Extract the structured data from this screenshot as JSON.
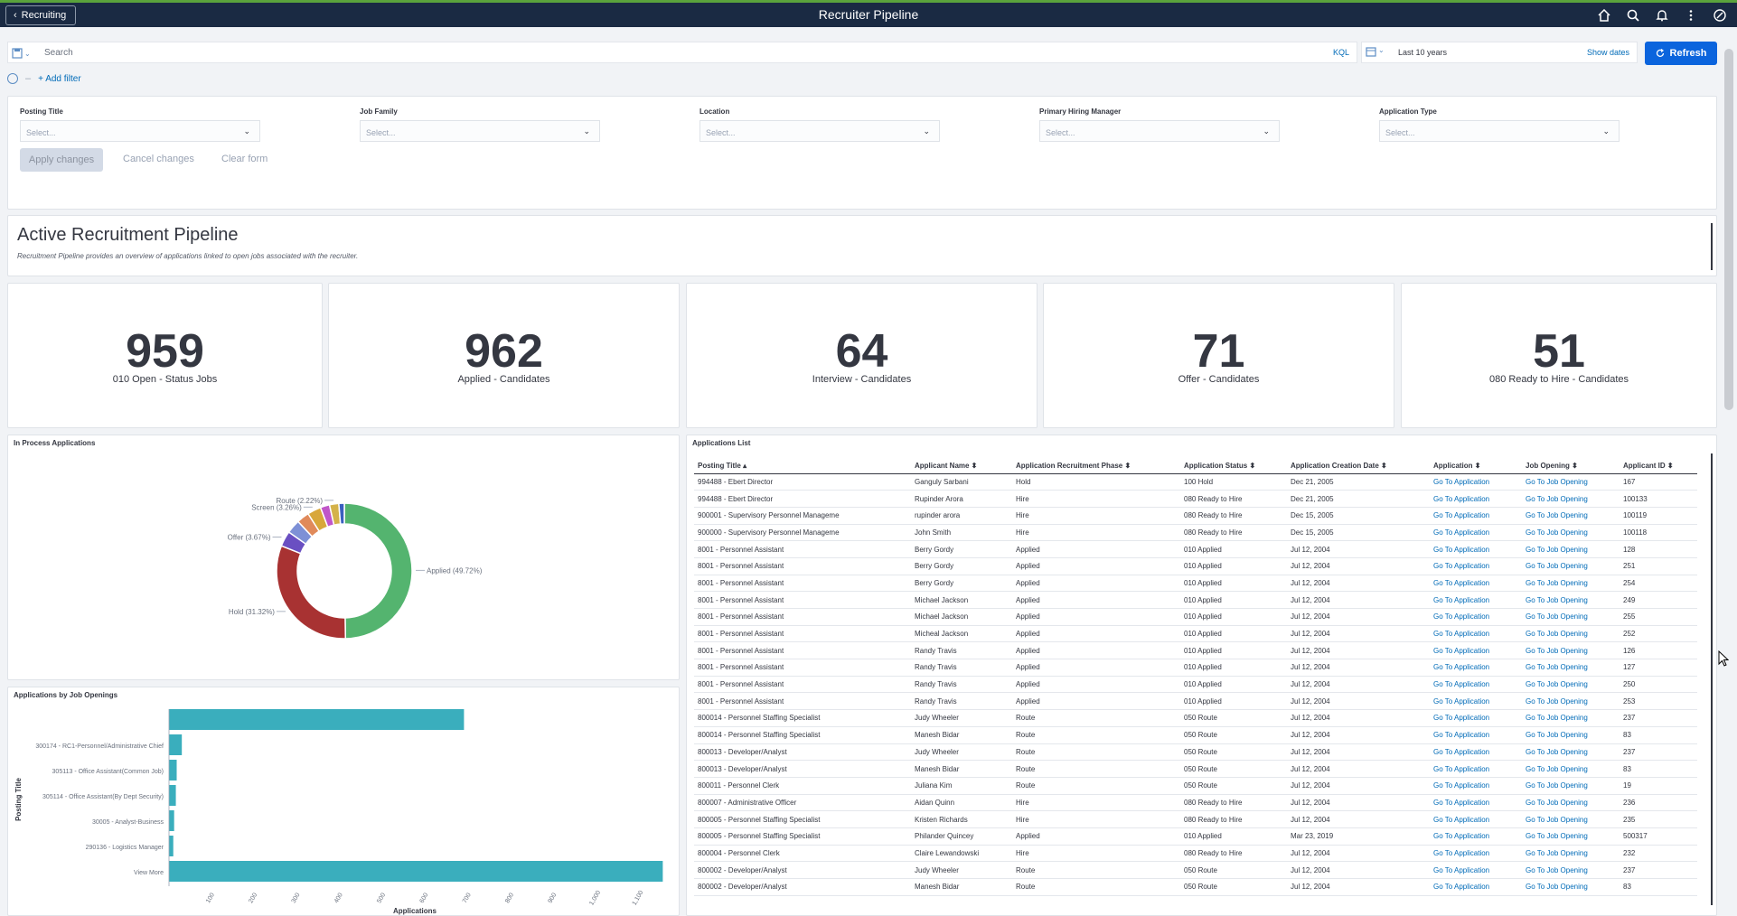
{
  "topbar": {
    "back_label": "Recruiting",
    "title": "Recruiter Pipeline",
    "icons": [
      "home-icon",
      "search-icon",
      "bell-icon",
      "more-vertical-icon",
      "compass-icon"
    ]
  },
  "query": {
    "search_placeholder": "Search",
    "kql_label": "KQL",
    "date_range": "Last 10 years",
    "show_dates": "Show dates",
    "refresh_label": "Refresh",
    "add_filter": "+ Add filter"
  },
  "controls": {
    "fields": [
      {
        "label": "Posting Title",
        "value": "Select..."
      },
      {
        "label": "Job Family",
        "value": "Select..."
      },
      {
        "label": "Location",
        "value": "Select..."
      },
      {
        "label": "Primary Hiring Manager",
        "value": "Select..."
      },
      {
        "label": "Application Type",
        "value": "Select..."
      }
    ],
    "apply": "Apply changes",
    "cancel": "Cancel changes",
    "clear": "Clear form"
  },
  "header": {
    "title": "Active Recruitment Pipeline",
    "description": "Recruitment Pipeline provides an overview of applications linked to open jobs associated with the recruiter."
  },
  "metrics": [
    {
      "value": "959",
      "label": "010 Open - Status Jobs"
    },
    {
      "value": "962",
      "label": "Applied - Candidates"
    },
    {
      "value": "64",
      "label": "Interview - Candidates"
    },
    {
      "value": "71",
      "label": "Offer - Candidates"
    },
    {
      "value": "51",
      "label": "080 Ready to Hire - Candidates"
    }
  ],
  "donut": {
    "title": "In Process Applications",
    "chart_data": {
      "type": "pie",
      "slices": [
        {
          "label": "Applied (49.72%)",
          "value": 49.72,
          "color": "#54b46f"
        },
        {
          "label": "Hold (31.32%)",
          "value": 31.32,
          "color": "#a83232"
        },
        {
          "label": "Offer (3.67%)",
          "value": 3.67,
          "color": "#6a4fc2"
        },
        {
          "label": "",
          "value": 3.3,
          "color": "#7e90d6"
        },
        {
          "label": "",
          "value": 3.0,
          "color": "#e08a5b"
        },
        {
          "label": "Screen (3.26%)",
          "value": 3.26,
          "color": "#d8a73a"
        },
        {
          "label": "",
          "value": 2.2,
          "color": "#c056c9"
        },
        {
          "label": "Route (2.22%)",
          "value": 2.22,
          "color": "#d4b24a"
        },
        {
          "label": "",
          "value": 1.3,
          "color": "#3a5fbf"
        }
      ]
    }
  },
  "bars": {
    "title": "Applications by Job Openings",
    "chart_data": {
      "type": "bar",
      "orientation": "horizontal",
      "ylabel": "Posting Title",
      "xlabel": "Applications",
      "xlim": [
        0,
        1150
      ],
      "x_ticks": [
        "100",
        "200",
        "300",
        "400",
        "500",
        "600",
        "700",
        "800",
        "900",
        "1,000",
        "1,100"
      ],
      "categories": [
        "",
        "300174 - RC1-Personnel/Administrative Chief",
        "305113 - Office Assistant(Common Job)",
        "305114 - Office Assistant(By Dept Security)",
        "30005 - Analyst-Business",
        "290136 - Logistics Manager",
        "View More"
      ],
      "values": [
        690,
        30,
        18,
        16,
        12,
        10,
        1155
      ],
      "color": "#3aaebd"
    }
  },
  "applications": {
    "title": "Applications List",
    "columns": [
      "Posting Title ▴",
      "Applicant Name ⬍",
      "Application Recruitment Phase ⬍",
      "Application Status ⬍",
      "Application Creation Date ⬍",
      "Application ⬍",
      "Job Opening ⬍",
      "Applicant ID ⬍"
    ],
    "rows": [
      [
        "994488 - Ebert Director",
        "Ganguly Sarbani",
        "Hold",
        "100 Hold",
        "Dec 21, 2005",
        "Go To Application",
        "Go To Job Opening",
        "167"
      ],
      [
        "994488 - Ebert Director",
        "Rupinder Arora",
        "Hire",
        "080 Ready to Hire",
        "Dec 21, 2005",
        "Go To Application",
        "Go To Job Opening",
        "100133"
      ],
      [
        "900001 - Supervisory Personnel Manageme",
        "rupinder arora",
        "Hire",
        "080 Ready to Hire",
        "Dec 15, 2005",
        "Go To Application",
        "Go To Job Opening",
        "100119"
      ],
      [
        "900000 - Supervisory Personnel Manageme",
        "John Smith",
        "Hire",
        "080 Ready to Hire",
        "Dec 15, 2005",
        "Go To Application",
        "Go To Job Opening",
        "100118"
      ],
      [
        "8001 - Personnel Assistant",
        "Berry Gordy",
        "Applied",
        "010 Applied",
        "Jul 12, 2004",
        "Go To Application",
        "Go To Job Opening",
        "128"
      ],
      [
        "8001 - Personnel Assistant",
        "Berry Gordy",
        "Applied",
        "010 Applied",
        "Jul 12, 2004",
        "Go To Application",
        "Go To Job Opening",
        "251"
      ],
      [
        "8001 - Personnel Assistant",
        "Berry Gordy",
        "Applied",
        "010 Applied",
        "Jul 12, 2004",
        "Go To Application",
        "Go To Job Opening",
        "254"
      ],
      [
        "8001 - Personnel Assistant",
        "Michael Jackson",
        "Applied",
        "010 Applied",
        "Jul 12, 2004",
        "Go To Application",
        "Go To Job Opening",
        "249"
      ],
      [
        "8001 - Personnel Assistant",
        "Michael Jackson",
        "Applied",
        "010 Applied",
        "Jul 12, 2004",
        "Go To Application",
        "Go To Job Opening",
        "255"
      ],
      [
        "8001 - Personnel Assistant",
        "Micheal Jackson",
        "Applied",
        "010 Applied",
        "Jul 12, 2004",
        "Go To Application",
        "Go To Job Opening",
        "252"
      ],
      [
        "8001 - Personnel Assistant",
        "Randy Travis",
        "Applied",
        "010 Applied",
        "Jul 12, 2004",
        "Go To Application",
        "Go To Job Opening",
        "126"
      ],
      [
        "8001 - Personnel Assistant",
        "Randy Travis",
        "Applied",
        "010 Applied",
        "Jul 12, 2004",
        "Go To Application",
        "Go To Job Opening",
        "127"
      ],
      [
        "8001 - Personnel Assistant",
        "Randy Travis",
        "Applied",
        "010 Applied",
        "Jul 12, 2004",
        "Go To Application",
        "Go To Job Opening",
        "250"
      ],
      [
        "8001 - Personnel Assistant",
        "Randy Travis",
        "Applied",
        "010 Applied",
        "Jul 12, 2004",
        "Go To Application",
        "Go To Job Opening",
        "253"
      ],
      [
        "800014 - Personnel Staffing Specialist",
        "Judy Wheeler",
        "Route",
        "050 Route",
        "Jul 12, 2004",
        "Go To Application",
        "Go To Job Opening",
        "237"
      ],
      [
        "800014 - Personnel Staffing Specialist",
        "Manesh Bidar",
        "Route",
        "050 Route",
        "Jul 12, 2004",
        "Go To Application",
        "Go To Job Opening",
        "83"
      ],
      [
        "800013 - Developer/Analyst",
        "Judy Wheeler",
        "Route",
        "050 Route",
        "Jul 12, 2004",
        "Go To Application",
        "Go To Job Opening",
        "237"
      ],
      [
        "800013 - Developer/Analyst",
        "Manesh Bidar",
        "Route",
        "050 Route",
        "Jul 12, 2004",
        "Go To Application",
        "Go To Job Opening",
        "83"
      ],
      [
        "800011 - Personnel Clerk",
        "Juliana Kim",
        "Route",
        "050 Route",
        "Jul 12, 2004",
        "Go To Application",
        "Go To Job Opening",
        "19"
      ],
      [
        "800007 - Administrative Officer",
        "Aidan Quinn",
        "Hire",
        "080 Ready to Hire",
        "Jul 12, 2004",
        "Go To Application",
        "Go To Job Opening",
        "236"
      ],
      [
        "800005 - Personnel Staffing Specialist",
        "Kristen Richards",
        "Hire",
        "080 Ready to Hire",
        "Jul 12, 2004",
        "Go To Application",
        "Go To Job Opening",
        "235"
      ],
      [
        "800005 - Personnel Staffing Specialist",
        "Philander Quincey",
        "Applied",
        "010 Applied",
        "Mar 23, 2019",
        "Go To Application",
        "Go To Job Opening",
        "500317"
      ],
      [
        "800004 - Personnel Clerk",
        "Claire Lewandowski",
        "Hire",
        "080 Ready to Hire",
        "Jul 12, 2004",
        "Go To Application",
        "Go To Job Opening",
        "232"
      ],
      [
        "800002 - Developer/Analyst",
        "Judy Wheeler",
        "Route",
        "050 Route",
        "Jul 12, 2004",
        "Go To Application",
        "Go To Job Opening",
        "237"
      ],
      [
        "800002 - Developer/Analyst",
        "Manesh Bidar",
        "Route",
        "050 Route",
        "Jul 12, 2004",
        "Go To Application",
        "Go To Job Opening",
        "83"
      ]
    ]
  }
}
